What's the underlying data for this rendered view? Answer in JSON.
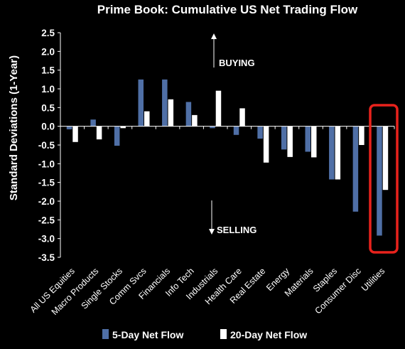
{
  "chart_data": {
    "type": "bar",
    "title": "Prime Book: Cumulative US Net Trading Flow",
    "ylabel": "Standard Deviations (1-Year)",
    "xlabel": "",
    "ylim": [
      -3.5,
      2.5
    ],
    "yticks": [
      "2.5",
      "2.0",
      "1.5",
      "1.0",
      "0.5",
      "0.0",
      "-0.5",
      "-1.0",
      "-1.5",
      "-2.0",
      "-2.5",
      "-3.0",
      "-3.5"
    ],
    "categories": [
      "All US Equities",
      "Macro Products",
      "Single Stocks",
      "Comm Svcs",
      "Financials",
      "Info Tech",
      "Industrials",
      "Health Care",
      "Real Estate",
      "Energy",
      "Materials",
      "Staples",
      "Consumer Disc",
      "Utilities"
    ],
    "series": [
      {
        "name": "5-Day Net Flow",
        "color": "#4f6fa6",
        "values": [
          -0.08,
          0.18,
          -0.52,
          1.25,
          1.25,
          0.65,
          -0.05,
          -0.23,
          -0.33,
          -0.62,
          -0.68,
          -1.42,
          -2.28,
          -2.92
        ]
      },
      {
        "name": "20-Day Net Flow",
        "color": "#ffffff",
        "values": [
          -0.42,
          -0.35,
          -0.05,
          0.4,
          0.72,
          0.3,
          0.95,
          0.48,
          -0.97,
          -0.82,
          -0.83,
          -1.42,
          -0.5,
          -1.7
        ]
      }
    ],
    "annotations": {
      "buying": "BUYING",
      "selling": "SELLING"
    },
    "highlight": {
      "category": "Utilities",
      "color": "#e8221c"
    },
    "legend_position": "bottom"
  }
}
